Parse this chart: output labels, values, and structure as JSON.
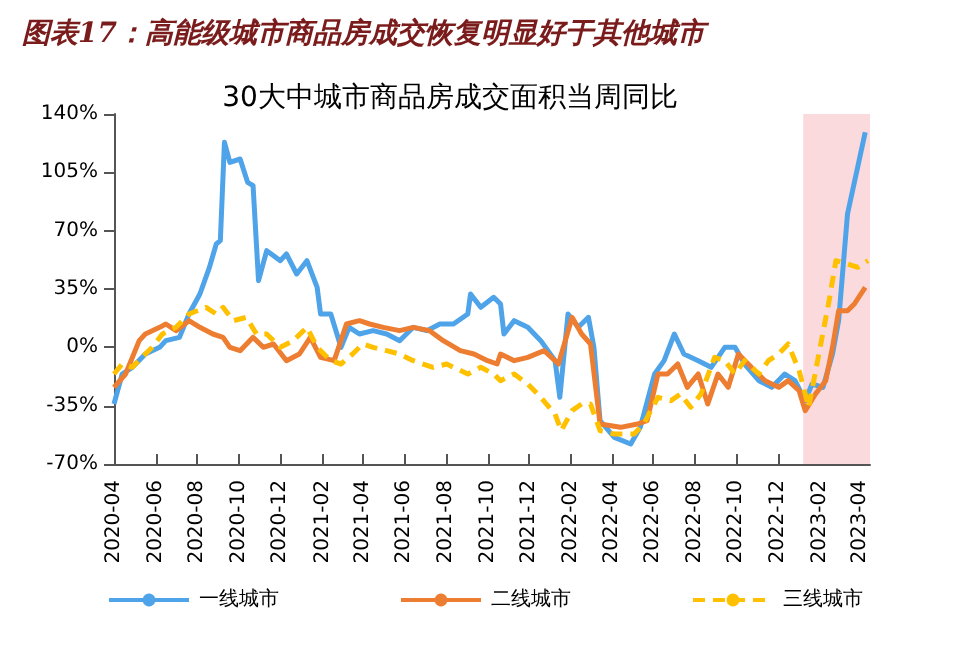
{
  "chart_data": {
    "type": "line",
    "title": "图表17：高能级城市商品房成交恢复明显好于其他城市",
    "subtitle": "30大中城市商品房成交面积当周同比",
    "xlim": [
      "2020-04",
      "2023-04-15"
    ],
    "xticks": [
      "2020-04",
      "2020-06",
      "2020-08",
      "2020-10",
      "2020-12",
      "2021-02",
      "2021-04",
      "2021-06",
      "2021-08",
      "2021-10",
      "2021-12",
      "2022-02",
      "2022-04",
      "2022-06",
      "2022-08",
      "2022-10",
      "2022-12",
      "2023-02",
      "2023-04"
    ],
    "ylim": [
      -70,
      140
    ],
    "yticks": [
      {
        "value": -70,
        "label": "-70%"
      },
      {
        "value": -35,
        "label": "-35%"
      },
      {
        "value": 0,
        "label": "0%"
      },
      {
        "value": 35,
        "label": "35%"
      },
      {
        "value": 70,
        "label": "70%"
      },
      {
        "value": 105,
        "label": "105%"
      },
      {
        "value": 140,
        "label": "140%"
      }
    ],
    "grid": false,
    "legend": "bottom",
    "marker": "none",
    "bands": [
      {
        "axis": "x",
        "from": "2023-01-07",
        "to": "2023-04-15",
        "color": "#fadadd"
      }
    ],
    "series": [
      {
        "name": "一线城市",
        "color": "#4fa3e8",
        "line_style": "solid",
        "x": [
          "2020-04-01",
          "2020-04-13",
          "2020-04-28",
          "2020-05-17",
          "2020-06-07",
          "2020-06-16",
          "2020-07-06",
          "2020-07-20",
          "2020-08-05",
          "2020-08-19",
          "2020-08-29",
          "2020-09-04",
          "2020-09-10",
          "2020-09-18",
          "2020-10-03",
          "2020-10-14",
          "2020-10-22",
          "2020-10-30",
          "2020-11-11",
          "2020-12-01",
          "2020-12-10",
          "2020-12-25",
          "2021-01-09",
          "2021-01-24",
          "2021-01-29",
          "2021-02-13",
          "2021-02-28",
          "2021-03-12",
          "2021-03-27",
          "2021-04-16",
          "2021-05-06",
          "2021-05-25",
          "2021-06-14",
          "2021-07-04",
          "2021-07-23",
          "2021-08-12",
          "2021-09-02",
          "2021-09-06",
          "2021-09-21",
          "2021-10-10",
          "2021-10-20",
          "2021-10-25",
          "2021-11-09",
          "2021-11-29",
          "2021-12-18",
          "2022-01-08",
          "2022-01-15",
          "2022-01-27",
          "2022-02-11",
          "2022-02-26",
          "2022-03-06",
          "2022-03-15",
          "2022-04-05",
          "2022-04-29",
          "2022-05-13",
          "2022-06-03",
          "2022-06-17",
          "2022-07-02",
          "2022-07-16",
          "2022-08-06",
          "2022-08-25",
          "2022-09-14",
          "2022-09-29",
          "2022-10-13",
          "2022-11-03",
          "2022-11-22",
          "2022-12-11",
          "2022-12-26",
          "2023-01-10",
          "2023-01-20",
          "2023-02-05",
          "2023-02-19",
          "2023-02-28",
          "2023-03-13",
          "2023-04-08"
        ],
        "values": [
          -34,
          -16,
          -12,
          -4,
          0,
          4,
          6,
          20,
          32,
          48,
          62,
          64,
          123,
          111,
          113,
          99,
          97,
          40,
          58,
          52,
          56,
          44,
          52,
          36,
          20,
          20,
          0,
          12,
          8,
          10,
          8,
          4,
          12,
          10,
          14,
          14,
          20,
          32,
          24,
          30,
          26,
          8,
          16,
          12,
          4,
          -8,
          -30,
          20,
          12,
          18,
          0,
          -44,
          -54,
          -58,
          -48,
          -16,
          -8,
          8,
          -4,
          -8,
          -12,
          0,
          0,
          -10,
          -20,
          -24,
          -16,
          -20,
          -32,
          -22,
          -24,
          -4,
          16,
          80,
          129
        ]
      },
      {
        "name": "二线城市",
        "color": "#ed7d31",
        "line_style": "solid",
        "x": [
          "2020-04-01",
          "2020-04-18",
          "2020-05-08",
          "2020-05-17",
          "2020-06-07",
          "2020-06-16",
          "2020-07-01",
          "2020-07-20",
          "2020-08-05",
          "2020-08-24",
          "2020-09-08",
          "2020-09-18",
          "2020-10-03",
          "2020-10-22",
          "2020-11-06",
          "2020-11-21",
          "2020-12-10",
          "2020-12-29",
          "2021-01-14",
          "2021-01-29",
          "2021-02-18",
          "2021-03-08",
          "2021-03-27",
          "2021-04-11",
          "2021-05-01",
          "2021-05-25",
          "2021-06-14",
          "2021-07-08",
          "2021-07-28",
          "2021-08-22",
          "2021-09-11",
          "2021-10-01",
          "2021-10-15",
          "2021-10-20",
          "2021-11-09",
          "2021-11-29",
          "2021-12-23",
          "2022-01-13",
          "2022-02-02",
          "2022-02-16",
          "2022-03-01",
          "2022-03-15",
          "2022-04-14",
          "2022-05-09",
          "2022-05-23",
          "2022-06-08",
          "2022-06-22",
          "2022-07-07",
          "2022-07-21",
          "2022-08-06",
          "2022-08-20",
          "2022-09-04",
          "2022-09-19",
          "2022-10-04",
          "2022-10-23",
          "2022-11-12",
          "2022-12-02",
          "2022-12-16",
          "2023-01-01",
          "2023-01-10",
          "2023-01-25",
          "2023-02-09",
          "2023-02-19",
          "2023-02-28",
          "2023-03-13",
          "2023-03-23",
          "2023-04-08"
        ],
        "values": [
          -24,
          -16,
          4,
          8,
          12,
          14,
          10,
          16,
          12,
          8,
          6,
          0,
          -2,
          6,
          0,
          2,
          -8,
          -4,
          6,
          -6,
          -8,
          14,
          16,
          14,
          12,
          10,
          12,
          10,
          4,
          -2,
          -4,
          -8,
          -10,
          -4,
          -8,
          -6,
          -2,
          -10,
          18,
          8,
          2,
          -46,
          -48,
          -46,
          -44,
          -16,
          -16,
          -10,
          -24,
          -16,
          -34,
          -16,
          -24,
          -4,
          -12,
          -20,
          -24,
          -20,
          -26,
          -38,
          -28,
          -20,
          0,
          22,
          22,
          26,
          36
        ]
      },
      {
        "name": "三线城市",
        "color": "#ffc000",
        "line_style": "dashed",
        "x": [
          "2020-04-01",
          "2020-04-13",
          "2020-04-28",
          "2020-05-12",
          "2020-05-27",
          "2020-06-11",
          "2020-07-01",
          "2020-07-20",
          "2020-08-14",
          "2020-08-29",
          "2020-09-08",
          "2020-09-23",
          "2020-10-12",
          "2020-10-27",
          "2020-11-11",
          "2020-12-01",
          "2020-12-20",
          "2021-01-09",
          "2021-01-24",
          "2021-02-13",
          "2021-02-28",
          "2021-03-17",
          "2021-04-01",
          "2021-04-16",
          "2021-05-06",
          "2021-05-25",
          "2021-06-14",
          "2021-07-13",
          "2021-08-02",
          "2021-09-02",
          "2021-09-21",
          "2021-10-10",
          "2021-10-20",
          "2021-11-09",
          "2021-11-29",
          "2021-12-18",
          "2022-01-08",
          "2022-01-17",
          "2022-02-02",
          "2022-02-16",
          "2022-03-01",
          "2022-03-15",
          "2022-04-05",
          "2022-05-04",
          "2022-05-18",
          "2022-06-08",
          "2022-06-27",
          "2022-07-11",
          "2022-07-26",
          "2022-08-10",
          "2022-08-30",
          "2022-09-14",
          "2022-09-29",
          "2022-10-13",
          "2022-11-03",
          "2022-11-17",
          "2022-12-02",
          "2022-12-16",
          "2023-01-01",
          "2023-01-15",
          "2023-01-30",
          "2023-02-14",
          "2023-02-24",
          "2023-03-13",
          "2023-03-28",
          "2023-04-12"
        ],
        "values": [
          -16,
          -10,
          -12,
          -6,
          0,
          8,
          12,
          20,
          24,
          20,
          24,
          16,
          18,
          8,
          8,
          0,
          4,
          12,
          0,
          -8,
          -10,
          -4,
          2,
          0,
          -2,
          -4,
          -8,
          -12,
          -10,
          -16,
          -12,
          -16,
          -20,
          -16,
          -22,
          -30,
          -40,
          -50,
          -38,
          -34,
          -34,
          -50,
          -52,
          -52,
          -46,
          -30,
          -32,
          -28,
          -36,
          -28,
          -6,
          -8,
          -16,
          -8,
          -16,
          -8,
          -4,
          2,
          -14,
          -36,
          -4,
          28,
          52,
          50,
          48,
          52
        ]
      }
    ]
  }
}
